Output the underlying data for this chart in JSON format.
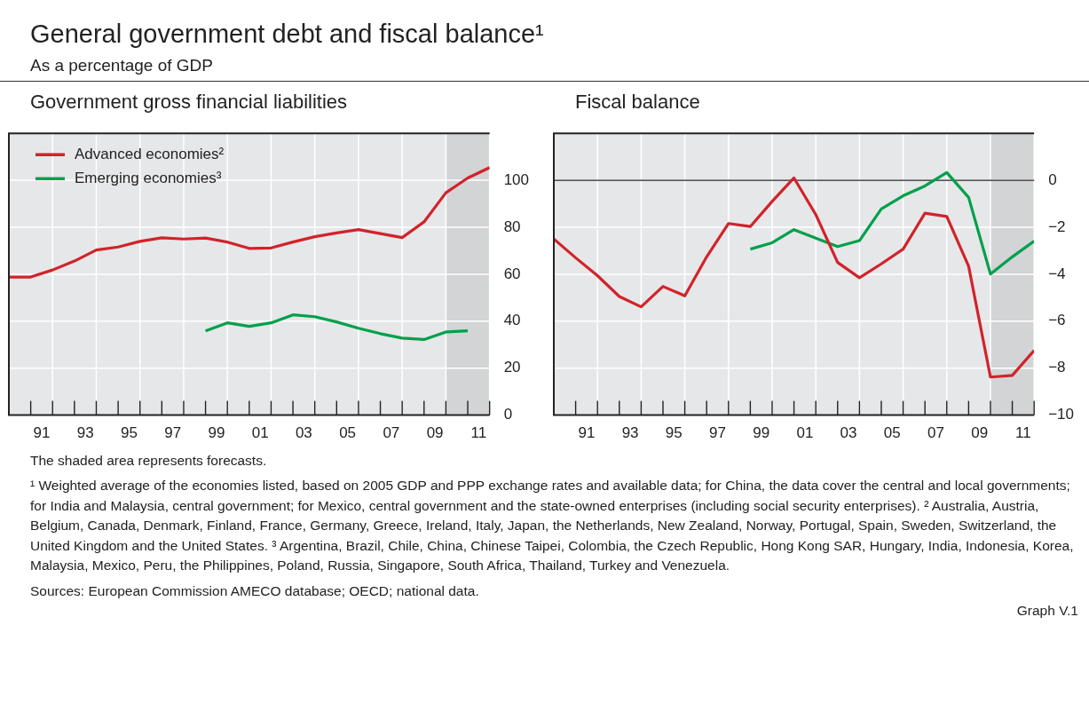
{
  "chart_data": [
    {
      "type": "other",
      "title": "General government debt and fiscal balance¹",
      "subtitle": "As a percentage of GDP"
    },
    {
      "type": "line",
      "title": "Government gross financial liabilities",
      "x": [
        1989.5,
        1990.5,
        1991.5,
        1992.5,
        1993.5,
        1994.5,
        1995.5,
        1996.5,
        1997.5,
        1998.5,
        1999.5,
        2000.5,
        2001.5,
        2002.5,
        2003.5,
        2004.5,
        2005.5,
        2006.5,
        2007.5,
        2008.5,
        2009.5,
        2010.5,
        2011.5
      ],
      "series": [
        {
          "name": "Advanced economies²",
          "color": "#d1232a",
          "values": [
            58.8,
            58.8,
            61.8,
            65.6,
            70.3,
            71.6,
            74,
            75.5,
            75,
            75.4,
            73.7,
            71,
            71.2,
            73.7,
            76,
            77.6,
            79,
            77.3,
            75.6,
            82.3,
            94.7,
            101,
            105.4
          ]
        },
        {
          "name": "Emerging economies³",
          "color": "#00a04b",
          "values": [
            null,
            null,
            null,
            null,
            null,
            null,
            null,
            null,
            null,
            35.9,
            39.3,
            37.8,
            39.3,
            42.7,
            41.9,
            39.7,
            37,
            34.7,
            32.8,
            32.2,
            35.4,
            35.9,
            null
          ]
        }
      ],
      "xlim": [
        1989.5,
        2011.5
      ],
      "xticks": [
        {
          "value": 1990.5,
          "label": null
        },
        {
          "value": 1991,
          "label": "91"
        },
        {
          "value": 1991.5,
          "label": null
        },
        {
          "value": 1992.5,
          "label": null
        },
        {
          "value": 1993,
          "label": "93"
        },
        {
          "value": 1993.5,
          "label": null
        },
        {
          "value": 1994.5,
          "label": null
        },
        {
          "value": 1995,
          "label": "95"
        },
        {
          "value": 1995.5,
          "label": null
        },
        {
          "value": 1996.5,
          "label": null
        },
        {
          "value": 1997,
          "label": "97"
        },
        {
          "value": 1997.5,
          "label": null
        },
        {
          "value": 1998.5,
          "label": null
        },
        {
          "value": 1999,
          "label": "99"
        },
        {
          "value": 1999.5,
          "label": null
        },
        {
          "value": 2000.5,
          "label": null
        },
        {
          "value": 2001,
          "label": "01"
        },
        {
          "value": 2001.5,
          "label": null
        },
        {
          "value": 2002.5,
          "label": null
        },
        {
          "value": 2003,
          "label": "03"
        },
        {
          "value": 2003.5,
          "label": null
        },
        {
          "value": 2004.5,
          "label": null
        },
        {
          "value": 2005,
          "label": "05"
        },
        {
          "value": 2005.5,
          "label": null
        },
        {
          "value": 2006.5,
          "label": null
        },
        {
          "value": 2007,
          "label": "07"
        },
        {
          "value": 2007.5,
          "label": null
        },
        {
          "value": 2008.5,
          "label": null
        },
        {
          "value": 2009,
          "label": "09"
        },
        {
          "value": 2009.5,
          "label": null
        },
        {
          "value": 2010.5,
          "label": null
        },
        {
          "value": 2011,
          "label": "11"
        },
        {
          "value": 2011.5,
          "label": null
        }
      ],
      "ylim": [
        0,
        120
      ],
      "yticks": [
        0,
        20,
        40,
        60,
        80,
        100
      ],
      "bands": [
        {
          "axis": "x",
          "from": 2009.5,
          "to": 2011.5,
          "color": "#d3d4d6"
        }
      ],
      "grid": true,
      "legend": "top left"
    },
    {
      "type": "line",
      "title": "Fiscal balance",
      "x": [
        1989.5,
        1990.5,
        1991.5,
        1992.5,
        1993.5,
        1994.5,
        1995.5,
        1996.5,
        1997.5,
        1998.5,
        1999.5,
        2000.5,
        2001.5,
        2002.5,
        2003.5,
        2004.5,
        2005.5,
        2006.5,
        2007.5,
        2008.5,
        2009.5,
        2010.5,
        2011.5
      ],
      "series": [
        {
          "color": "#d1232a",
          "values": [
            -2.5,
            -3.3,
            -4.06,
            -4.95,
            -5.39,
            -4.52,
            -4.92,
            -3.26,
            -1.84,
            -1.97,
            -0.9,
            0.1,
            -1.46,
            -3.5,
            -4.15,
            -3.56,
            -2.93,
            -1.4,
            -1.54,
            -3.66,
            -8.38,
            -8.31,
            -7.25
          ]
        },
        {
          "color": "#00a04b",
          "values": [
            null,
            null,
            null,
            null,
            null,
            null,
            null,
            null,
            null,
            -2.93,
            -2.66,
            -2.1,
            -2.46,
            -2.82,
            -2.57,
            -1.22,
            -0.66,
            -0.24,
            0.33,
            -0.73,
            -3.99,
            -3.26,
            -2.59
          ]
        }
      ],
      "xlim": [
        1989.5,
        2011.5
      ],
      "xticks": [
        {
          "value": 1990.5,
          "label": null
        },
        {
          "value": 1991,
          "label": "91"
        },
        {
          "value": 1991.5,
          "label": null
        },
        {
          "value": 1992.5,
          "label": null
        },
        {
          "value": 1993,
          "label": "93"
        },
        {
          "value": 1993.5,
          "label": null
        },
        {
          "value": 1994.5,
          "label": null
        },
        {
          "value": 1995,
          "label": "95"
        },
        {
          "value": 1995.5,
          "label": null
        },
        {
          "value": 1996.5,
          "label": null
        },
        {
          "value": 1997,
          "label": "97"
        },
        {
          "value": 1997.5,
          "label": null
        },
        {
          "value": 1998.5,
          "label": null
        },
        {
          "value": 1999,
          "label": "99"
        },
        {
          "value": 1999.5,
          "label": null
        },
        {
          "value": 2000.5,
          "label": null
        },
        {
          "value": 2001,
          "label": "01"
        },
        {
          "value": 2001.5,
          "label": null
        },
        {
          "value": 2002.5,
          "label": null
        },
        {
          "value": 2003,
          "label": "03"
        },
        {
          "value": 2003.5,
          "label": null
        },
        {
          "value": 2004.5,
          "label": null
        },
        {
          "value": 2005,
          "label": "05"
        },
        {
          "value": 2005.5,
          "label": null
        },
        {
          "value": 2006.5,
          "label": null
        },
        {
          "value": 2007,
          "label": "07"
        },
        {
          "value": 2007.5,
          "label": null
        },
        {
          "value": 2008.5,
          "label": null
        },
        {
          "value": 2009,
          "label": "09"
        },
        {
          "value": 2009.5,
          "label": null
        },
        {
          "value": 2010.5,
          "label": null
        },
        {
          "value": 2011,
          "label": "11"
        },
        {
          "value": 2011.5,
          "label": null
        }
      ],
      "ylim": [
        -10,
        2
      ],
      "yticks": [
        {
          "value": -10,
          "label": "−10"
        },
        {
          "value": -8,
          "label": "−8"
        },
        {
          "value": -6,
          "label": "−6"
        },
        {
          "value": -4,
          "label": "−4"
        },
        {
          "value": -2,
          "label": "−2"
        },
        0
      ],
      "bands": [
        {
          "axis": "x",
          "from": 2009.5,
          "to": 2011.5,
          "color": "#d3d4d6"
        }
      ],
      "ref_lines": [
        {
          "axis": "y",
          "value": 0,
          "color": "#222222"
        }
      ],
      "grid": true
    },
    {
      "type": "other",
      "annotations": [
        "The shaded area represents forecasts.",
        "¹ Weighted average of the economies listed, based on 2005 GDP and PPP exchange rates and available data; for China, the data cover the central and local governments; for India and Malaysia, central government; for Mexico, central government and the state-owned enterprises (including social security enterprises).   ² Australia, Austria, Belgium, Canada, Denmark, Finland, France, Germany, Greece, Ireland, Italy, Japan, the Netherlands, New Zealand, Norway, Portugal, Spain, Sweden, Switzerland, the United Kingdom and the United States.   ³ Argentina, Brazil, Chile, China, Chinese Taipei, Colombia, the Czech Republic, Hong Kong SAR, Hungary, India, Indonesia, Korea, Malaysia, Mexico, Peru, the Philippines, Poland, Russia, Singapore, South Africa, Thailand, Turkey and Venezuela.",
        "Sources: European Commission AMECO database; OECD; national data.",
        "Graph V.1"
      ]
    }
  ]
}
